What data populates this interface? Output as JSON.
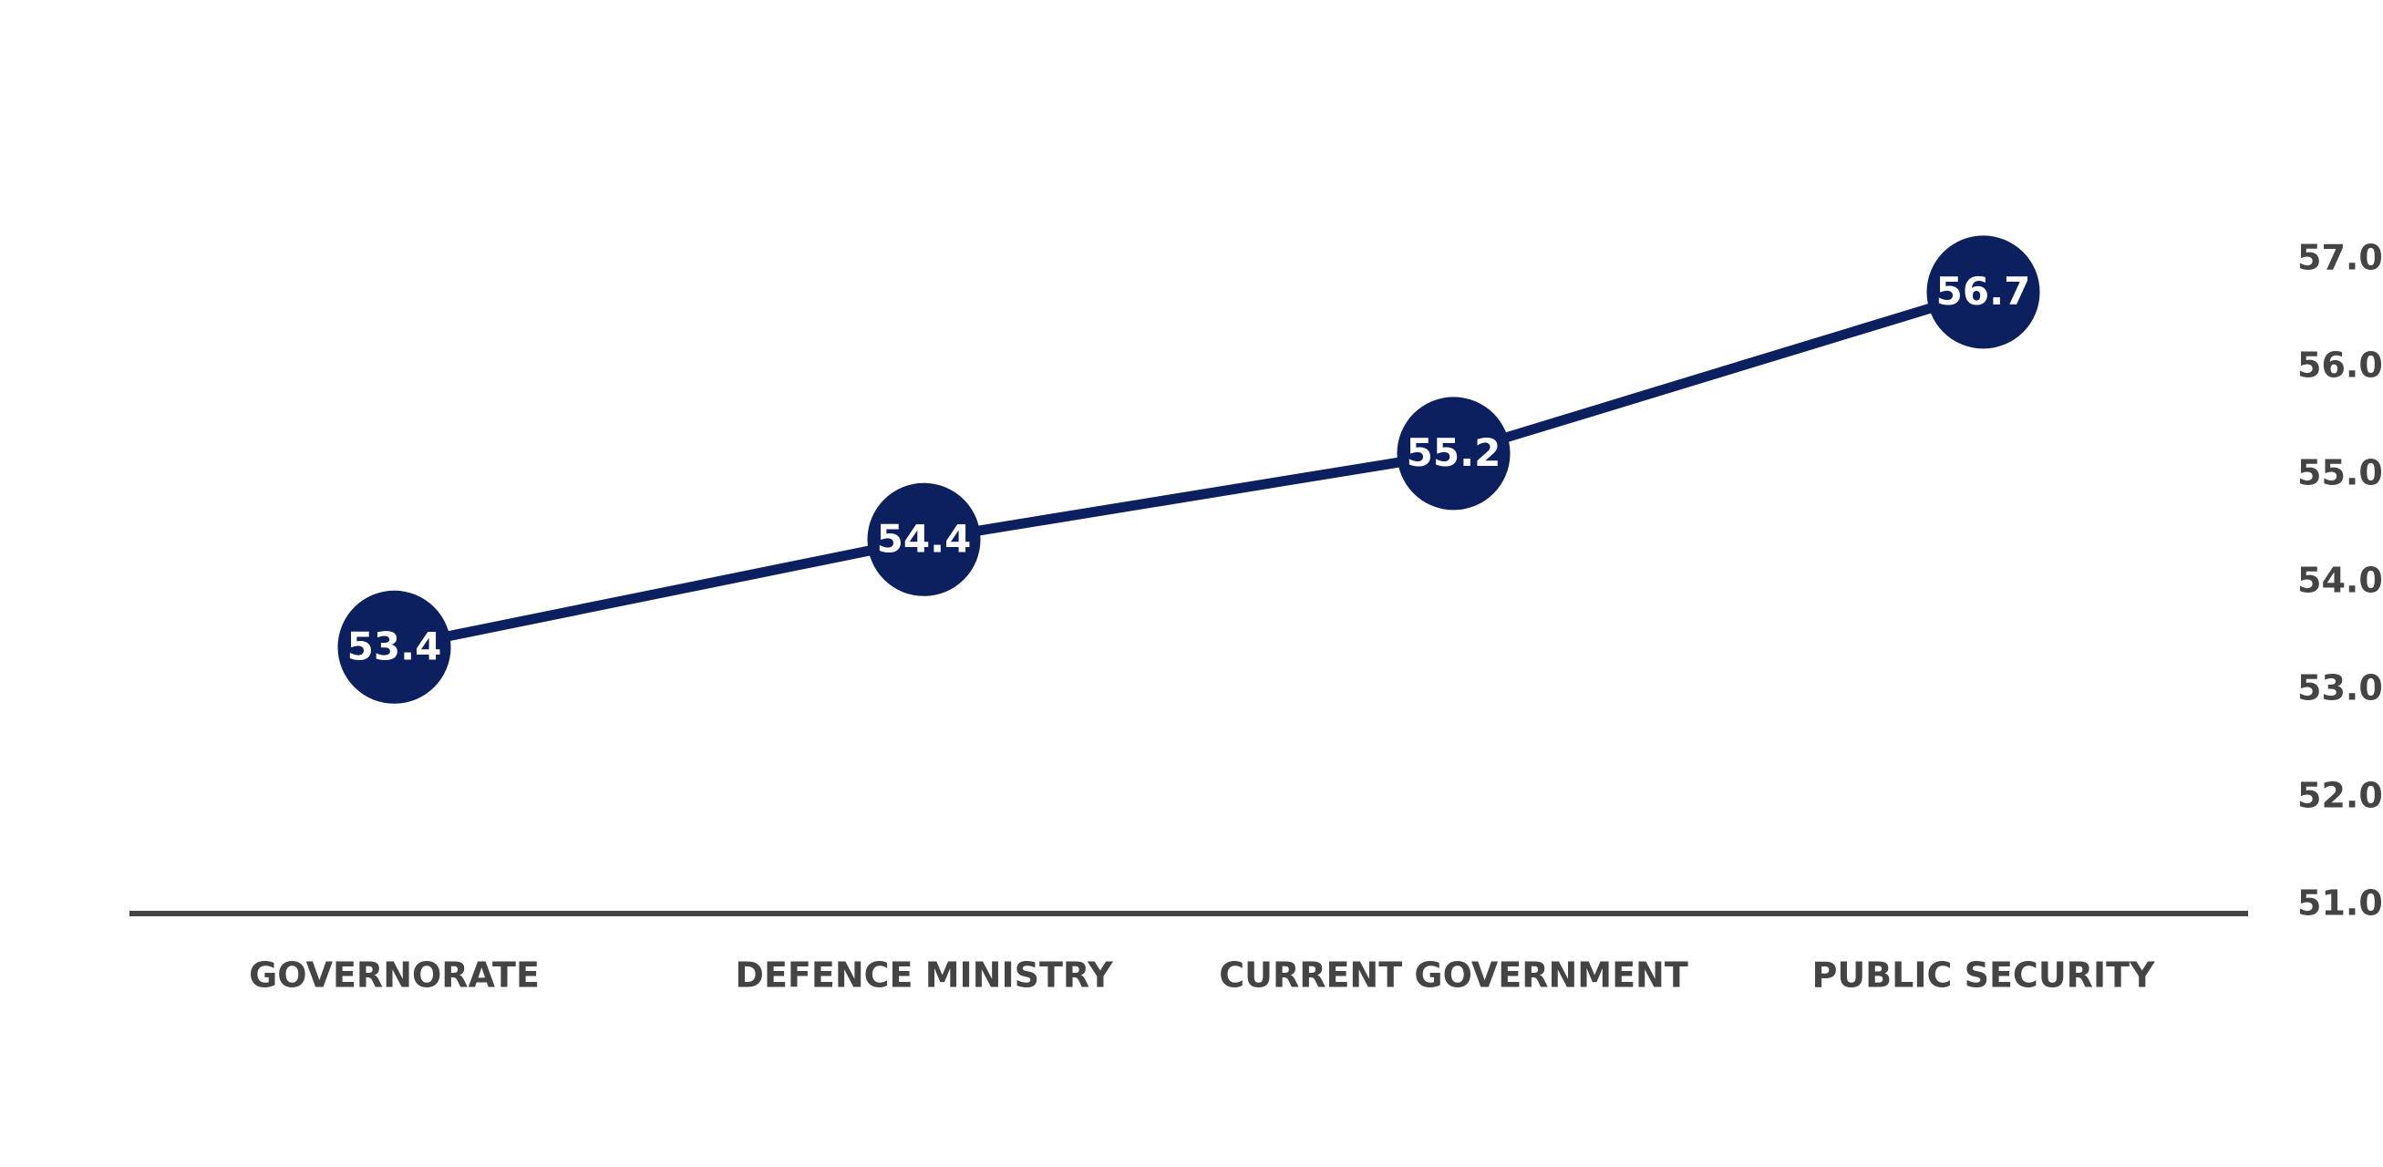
{
  "chart_data": {
    "type": "line",
    "categories": [
      "GOVERNORATE",
      "DEFENCE MINISTRY",
      "CURRENT GOVERNMENT",
      "PUBLIC SECURITY"
    ],
    "values": [
      53.4,
      54.4,
      55.2,
      56.7
    ],
    "color": "#0c1f5e",
    "ylim": [
      51,
      57
    ],
    "yticks": [
      {
        "value": 51,
        "label": "51.0"
      },
      {
        "value": 52,
        "label": "52.0"
      },
      {
        "value": 53,
        "label": "53.0"
      },
      {
        "value": 54,
        "label": "54.0"
      },
      {
        "value": 55,
        "label": "55.0"
      },
      {
        "value": 56,
        "label": "56.0"
      },
      {
        "value": 57,
        "label": "57.0"
      }
    ],
    "y_axis_side": "right",
    "grid": false
  }
}
